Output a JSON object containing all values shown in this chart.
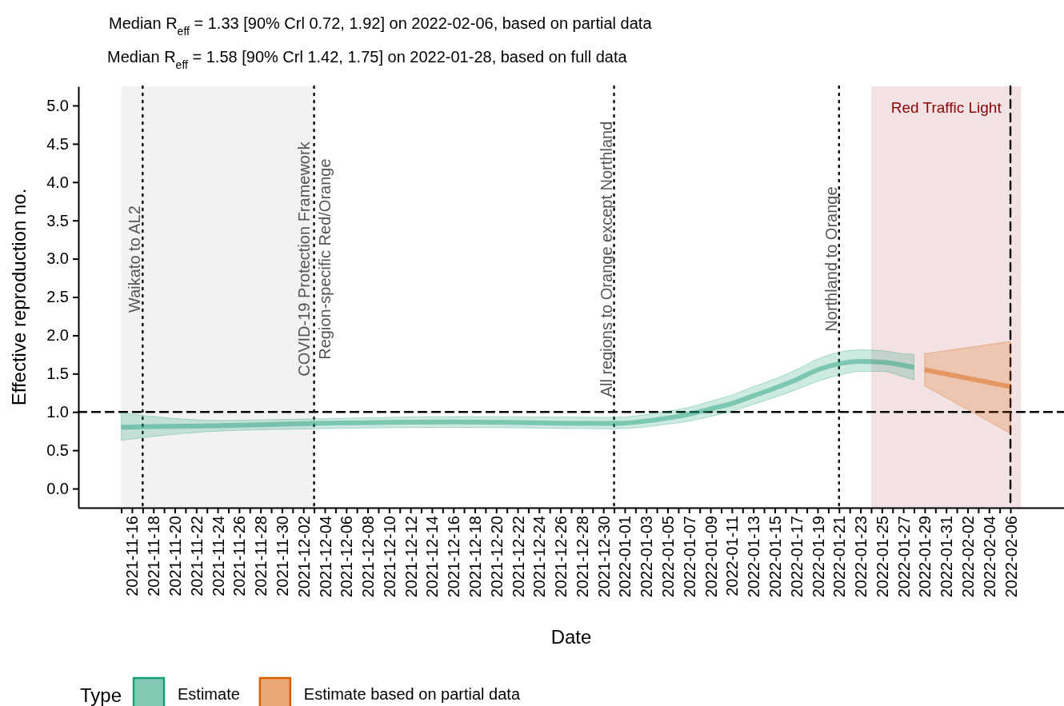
{
  "chart_data": {
    "type": "line",
    "title": "Median R$_{eff}$ = 1.33 [90% Crl 0.72, 1.92] on 2022-02-06, based on partial data",
    "subtitle": "Median R$_{eff}$ = 1.58 [90% Crl 1.42, 1.75] on 2022-01-28, based on full data",
    "xlabel": "Date",
    "ylabel": "Effective reproduction no.",
    "legend_title": "Type",
    "legend": "bottom",
    "xlim": [
      "2021-11-11",
      "2022-02-11"
    ],
    "ylim": [
      -0.25,
      5.25
    ],
    "yticks": [
      {
        "value": 0,
        "label": "0.0"
      },
      {
        "value": 0.5,
        "label": "0.5"
      },
      {
        "value": 1,
        "label": "1.0"
      },
      {
        "value": 1.5,
        "label": "1.5"
      },
      {
        "value": 2,
        "label": "2.0"
      },
      {
        "value": 2.5,
        "label": "2.5"
      },
      {
        "value": 3,
        "label": "3.0"
      },
      {
        "value": 3.5,
        "label": "3.5"
      },
      {
        "value": 4,
        "label": "4.0"
      },
      {
        "value": 4.5,
        "label": "4.5"
      },
      {
        "value": 5,
        "label": "5.0"
      }
    ],
    "xticks": [
      {
        "value": "2021-11-15",
        "label": null
      },
      "2021-11-16",
      {
        "value": "2021-11-17",
        "label": null
      },
      "2021-11-18",
      {
        "value": "2021-11-19",
        "label": null
      },
      "2021-11-20",
      {
        "value": "2021-11-21",
        "label": null
      },
      "2021-11-22",
      {
        "value": "2021-11-23",
        "label": null
      },
      "2021-11-24",
      {
        "value": "2021-11-25",
        "label": null
      },
      "2021-11-26",
      {
        "value": "2021-11-27",
        "label": null
      },
      "2021-11-28",
      {
        "value": "2021-11-29",
        "label": null
      },
      "2021-11-30",
      {
        "value": "2021-12-01",
        "label": null
      },
      "2021-12-02",
      {
        "value": "2021-12-03",
        "label": null
      },
      "2021-12-04",
      {
        "value": "2021-12-05",
        "label": null
      },
      "2021-12-06",
      {
        "value": "2021-12-07",
        "label": null
      },
      "2021-12-08",
      {
        "value": "2021-12-09",
        "label": null
      },
      "2021-12-10",
      {
        "value": "2021-12-11",
        "label": null
      },
      "2021-12-12",
      {
        "value": "2021-12-13",
        "label": null
      },
      "2021-12-14",
      {
        "value": "2021-12-15",
        "label": null
      },
      "2021-12-16",
      {
        "value": "2021-12-17",
        "label": null
      },
      "2021-12-18",
      {
        "value": "2021-12-19",
        "label": null
      },
      "2021-12-20",
      {
        "value": "2021-12-21",
        "label": null
      },
      "2021-12-22",
      {
        "value": "2021-12-23",
        "label": null
      },
      "2021-12-24",
      {
        "value": "2021-12-25",
        "label": null
      },
      "2021-12-26",
      {
        "value": "2021-12-27",
        "label": null
      },
      "2021-12-28",
      {
        "value": "2021-12-29",
        "label": null
      },
      "2021-12-30",
      {
        "value": "2021-12-31",
        "label": null
      },
      "2022-01-01",
      {
        "value": "2022-01-02",
        "label": null
      },
      "2022-01-03",
      {
        "value": "2022-01-04",
        "label": null
      },
      "2022-01-05",
      {
        "value": "2022-01-06",
        "label": null
      },
      "2022-01-07",
      {
        "value": "2022-01-08",
        "label": null
      },
      "2022-01-09",
      {
        "value": "2022-01-10",
        "label": null
      },
      "2022-01-11",
      {
        "value": "2022-01-12",
        "label": null
      },
      "2022-01-13",
      {
        "value": "2022-01-14",
        "label": null
      },
      "2022-01-15",
      {
        "value": "2022-01-16",
        "label": null
      },
      "2022-01-17",
      {
        "value": "2022-01-18",
        "label": null
      },
      "2022-01-19",
      {
        "value": "2022-01-20",
        "label": null
      },
      "2022-01-21",
      {
        "value": "2022-01-22",
        "label": null
      },
      "2022-01-23",
      {
        "value": "2022-01-24",
        "label": null
      },
      "2022-01-25",
      {
        "value": "2022-01-26",
        "label": null
      },
      "2022-01-27",
      {
        "value": "2022-01-28",
        "label": null
      },
      "2022-01-29",
      {
        "value": "2022-01-30",
        "label": null
      },
      "2022-01-31",
      {
        "value": "2022-02-01",
        "label": null
      },
      "2022-02-02",
      {
        "value": "2022-02-03",
        "label": null
      },
      "2022-02-04",
      {
        "value": "2022-02-05",
        "label": null
      },
      "2022-02-06"
    ],
    "bands": [
      {
        "axis": "x",
        "from": "2021-11-15",
        "to": "2021-12-03",
        "color": "#f2f2f2"
      },
      {
        "axis": "x",
        "from": "2022-01-24",
        "to": "2022-02-07",
        "label": "Red Traffic Light",
        "color": "#f2e2e3"
      }
    ],
    "ref_lines": [
      {
        "axis": "y",
        "value": 1,
        "line_style": "dashed"
      },
      {
        "axis": "x",
        "value": "2021-11-17",
        "label": "Waikato to AL2",
        "line_style": "dotted"
      },
      {
        "axis": "x",
        "value": "2021-12-03",
        "label": "COVID-19 Protection Framework\nRegion-specific Red/Orange",
        "line_style": "dotted"
      },
      {
        "axis": "x",
        "value": "2021-12-31",
        "label": "All regions to Orange except Northland",
        "line_style": "dotted"
      },
      {
        "axis": "x",
        "value": "2022-01-21",
        "label": "Northland to Orange",
        "line_style": "dotted"
      },
      {
        "axis": "x",
        "value": "2022-02-06",
        "line_style": "dashed"
      }
    ],
    "series": [
      {
        "name": "Estimate",
        "color": "#1b9e77",
        "x": [
          "2021-11-15",
          "2021-11-18",
          "2021-11-24",
          "2021-12-03",
          "2021-12-16",
          "2021-12-31",
          "2022-01-05",
          "2022-01-07",
          "2022-01-09",
          "2022-01-11",
          "2022-01-13",
          "2022-01-15",
          "2022-01-17",
          "2022-01-19",
          "2022-01-21",
          "2022-01-23",
          "2022-01-25",
          "2022-01-27",
          "2022-01-28"
        ],
        "values": [
          0.8,
          0.81,
          0.82,
          0.85,
          0.87,
          0.85,
          0.92,
          0.97,
          1.04,
          1.11,
          1.21,
          1.31,
          1.42,
          1.55,
          1.63,
          1.66,
          1.65,
          1.61,
          1.58
        ],
        "lower": [
          0.63,
          0.68,
          0.75,
          0.78,
          0.8,
          0.78,
          0.84,
          0.88,
          0.94,
          1.01,
          1.1,
          1.19,
          1.29,
          1.4,
          1.48,
          1.53,
          1.53,
          1.46,
          1.42
        ],
        "upper": [
          0.99,
          0.94,
          0.89,
          0.91,
          0.94,
          0.93,
          1.01,
          1.06,
          1.14,
          1.22,
          1.33,
          1.43,
          1.55,
          1.69,
          1.78,
          1.81,
          1.8,
          1.76,
          1.75
        ]
      },
      {
        "name": "Estimate based on partial data",
        "color": "#d95f02",
        "x": [
          "2022-01-29",
          "2022-02-02",
          "2022-02-06"
        ],
        "values": [
          1.55,
          1.44,
          1.33
        ],
        "lower": [
          1.34,
          1.03,
          0.72
        ],
        "upper": [
          1.76,
          1.84,
          1.92
        ]
      }
    ]
  }
}
